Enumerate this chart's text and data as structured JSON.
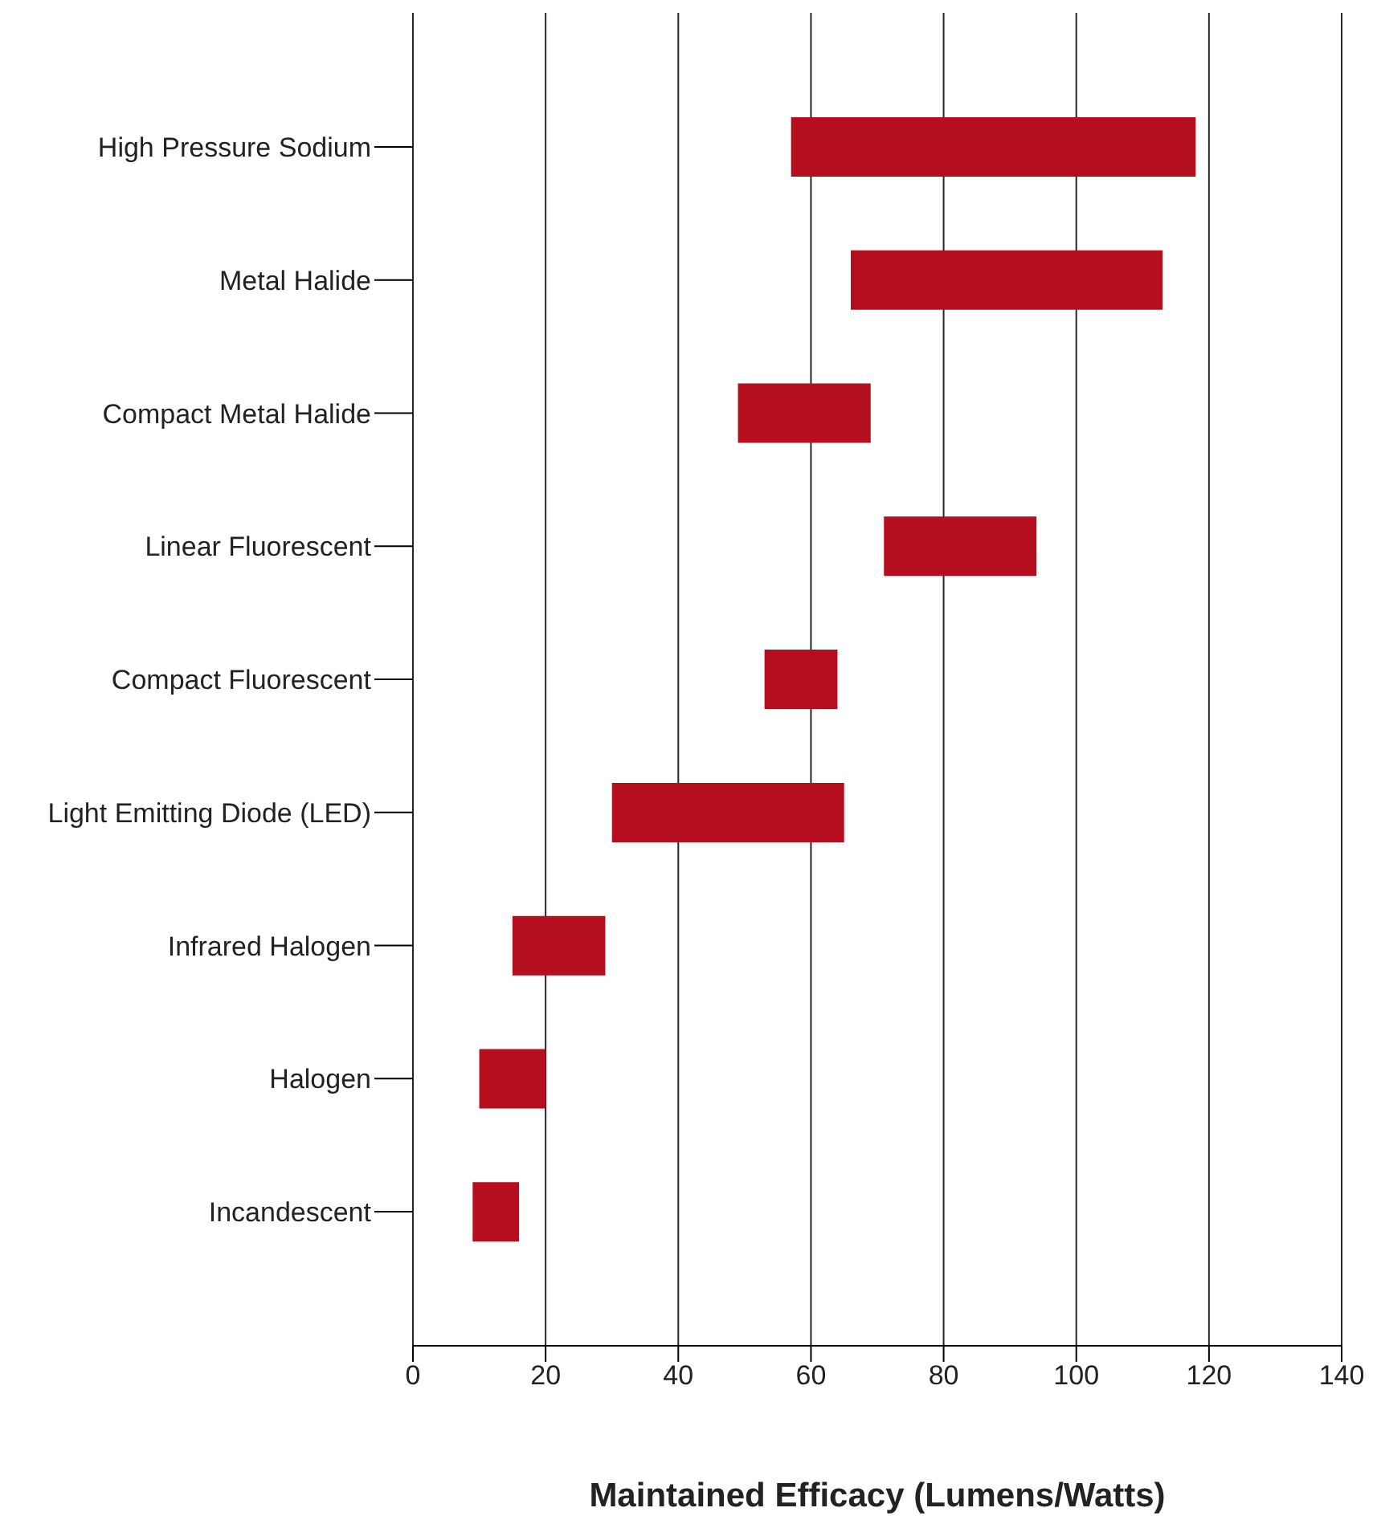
{
  "chart_data": {
    "type": "bar",
    "orientation": "horizontal",
    "xlabel": "Maintained Efficacy (Lumens/Watts)",
    "categories": [
      "High Pressure Sodium",
      "Metal Halide",
      "Compact Metal Halide",
      "Linear Fluorescent",
      "Compact Fluorescent",
      "Light Emitting Diode (LED)",
      "Infrared Halogen",
      "Halogen",
      "Incandescent"
    ],
    "base": [
      57,
      66,
      49,
      71,
      53,
      30,
      15,
      10,
      9
    ],
    "values": [
      61,
      47,
      20,
      23,
      11,
      35,
      14,
      10,
      7
    ],
    "color": "#b50e1e",
    "xlim": [
      0,
      140
    ],
    "xticks": [
      0,
      20,
      40,
      60,
      80,
      100,
      120,
      140
    ],
    "grid": "x",
    "legend": false
  }
}
